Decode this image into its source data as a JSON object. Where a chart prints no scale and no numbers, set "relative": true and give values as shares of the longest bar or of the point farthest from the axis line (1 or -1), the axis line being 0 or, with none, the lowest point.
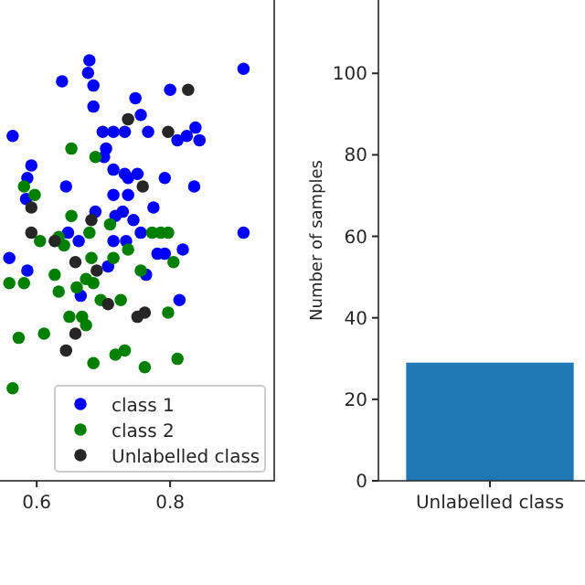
{
  "chart_data": [
    {
      "type": "scatter",
      "relative": true,
      "xlim": [
        0.545,
        0.956
      ],
      "xticks": [
        0.6,
        0.8
      ],
      "tick_labels": "x",
      "legend": "bottom right",
      "marker": "circle",
      "series": [
        {
          "name": "class 1",
          "color": "#0000ff",
          "x": [
            0.679,
            0.638,
            0.677,
            0.685,
            0.91,
            0.748,
            0.8,
            0.685,
            0.756,
            0.564,
            0.699,
            0.715,
            0.732,
            0.767,
            0.811,
            0.838,
            0.844,
            0.825,
            0.704,
            0.701,
            0.592,
            0.586,
            0.715,
            0.732,
            0.751,
            0.737,
            0.792,
            0.644,
            0.836,
            0.584,
            0.715,
            0.737,
            0.729,
            0.775,
            0.688,
            0.718,
            0.745,
            0.756,
            0.91,
            0.647,
            0.663,
            0.715,
            0.734,
            0.781,
            0.819,
            0.792,
            0.559,
            0.707,
            0.764,
            0.586,
            0.666,
            0.814
          ],
          "values": [
            1.0,
            0.95,
            0.97,
            0.94,
            0.98,
            0.91,
            0.93,
            0.89,
            0.87,
            0.82,
            0.83,
            0.83,
            0.83,
            0.83,
            0.81,
            0.84,
            0.81,
            0.82,
            0.79,
            0.77,
            0.75,
            0.72,
            0.74,
            0.73,
            0.73,
            0.72,
            0.72,
            0.7,
            0.7,
            0.67,
            0.68,
            0.68,
            0.64,
            0.65,
            0.64,
            0.63,
            0.62,
            0.59,
            0.59,
            0.59,
            0.57,
            0.57,
            0.57,
            0.54,
            0.55,
            0.54,
            0.53,
            0.51,
            0.49,
            0.5,
            0.44,
            0.43
          ]
        },
        {
          "name": "class 2",
          "color": "#008000",
          "x": [
            0.652,
            0.688,
            0.581,
            0.597,
            0.652,
            0.71,
            0.679,
            0.605,
            0.633,
            0.641,
            0.773,
            0.786,
            0.797,
            0.737,
            0.805,
            0.682,
            0.627,
            0.756,
            0.674,
            0.559,
            0.581,
            0.633,
            0.66,
            0.685,
            0.696,
            0.726,
            0.649,
            0.668,
            0.674,
            0.797,
            0.573,
            0.611,
            0.718,
            0.732,
            0.685,
            0.762,
            0.811,
            0.564,
            0.715
          ],
          "values": [
            0.79,
            0.77,
            0.7,
            0.68,
            0.63,
            0.61,
            0.59,
            0.57,
            0.58,
            0.56,
            0.59,
            0.59,
            0.59,
            0.55,
            0.52,
            0.53,
            0.49,
            0.5,
            0.48,
            0.47,
            0.47,
            0.45,
            0.46,
            0.47,
            0.43,
            0.43,
            0.39,
            0.39,
            0.37,
            0.4,
            0.34,
            0.35,
            0.3,
            0.31,
            0.28,
            0.27,
            0.29,
            0.22,
            0.53
          ]
        },
        {
          "name": "Unlabelled class",
          "color": "#262626",
          "x": [
            0.827,
            0.737,
            0.797,
            0.759,
            0.592,
            0.682,
            0.592,
            0.627,
            0.658,
            0.69,
            0.707,
            0.751,
            0.762,
            0.658,
            0.644
          ],
          "values": [
            0.93,
            0.86,
            0.83,
            0.7,
            0.65,
            0.62,
            0.59,
            0.57,
            0.52,
            0.5,
            0.42,
            0.39,
            0.4,
            0.35,
            0.31
          ]
        }
      ]
    },
    {
      "type": "bar",
      "categories": [
        "Unlabelled class"
      ],
      "values": [
        29
      ],
      "color": "#1f77b4",
      "ylabel": "Number of samples",
      "ylim": [
        0,
        118
      ],
      "yticks": [
        0,
        20,
        40,
        60,
        80,
        100
      ]
    }
  ]
}
